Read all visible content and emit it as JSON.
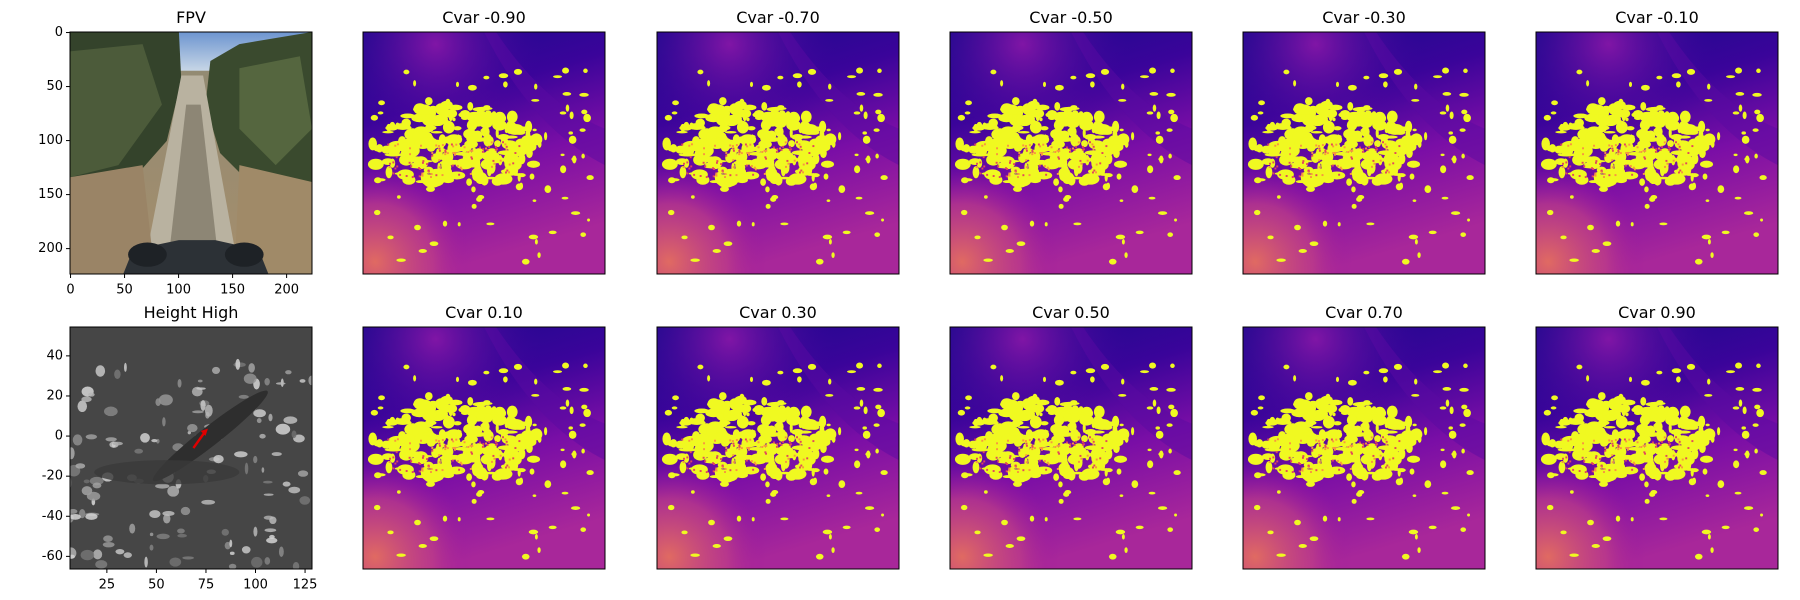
{
  "panels": [
    {
      "title": "FPV",
      "xlim": [
        -0.5,
        223.5
      ],
      "ylim": [
        223.5,
        -0.5
      ],
      "xticks": [
        0,
        50,
        100,
        150,
        200
      ],
      "yticks": [
        0,
        50,
        100,
        150,
        200
      ]
    },
    {
      "title": "Height High",
      "xlim": [
        6.4,
        128.5
      ],
      "ylim": [
        -66.3,
        54.4
      ],
      "xticks": [
        25,
        50,
        75,
        100,
        125
      ],
      "yticks": [
        40,
        20,
        0,
        -20,
        -40,
        -60
      ]
    },
    {
      "title": "Cvar -0.90"
    },
    {
      "title": "Cvar -0.70"
    },
    {
      "title": "Cvar -0.50"
    },
    {
      "title": "Cvar -0.30"
    },
    {
      "title": "Cvar -0.10"
    },
    {
      "title": "Cvar 0.10"
    },
    {
      "title": "Cvar 0.30"
    },
    {
      "title": "Cvar 0.50"
    },
    {
      "title": "Cvar 0.70"
    },
    {
      "title": "Cvar 0.90"
    }
  ]
}
